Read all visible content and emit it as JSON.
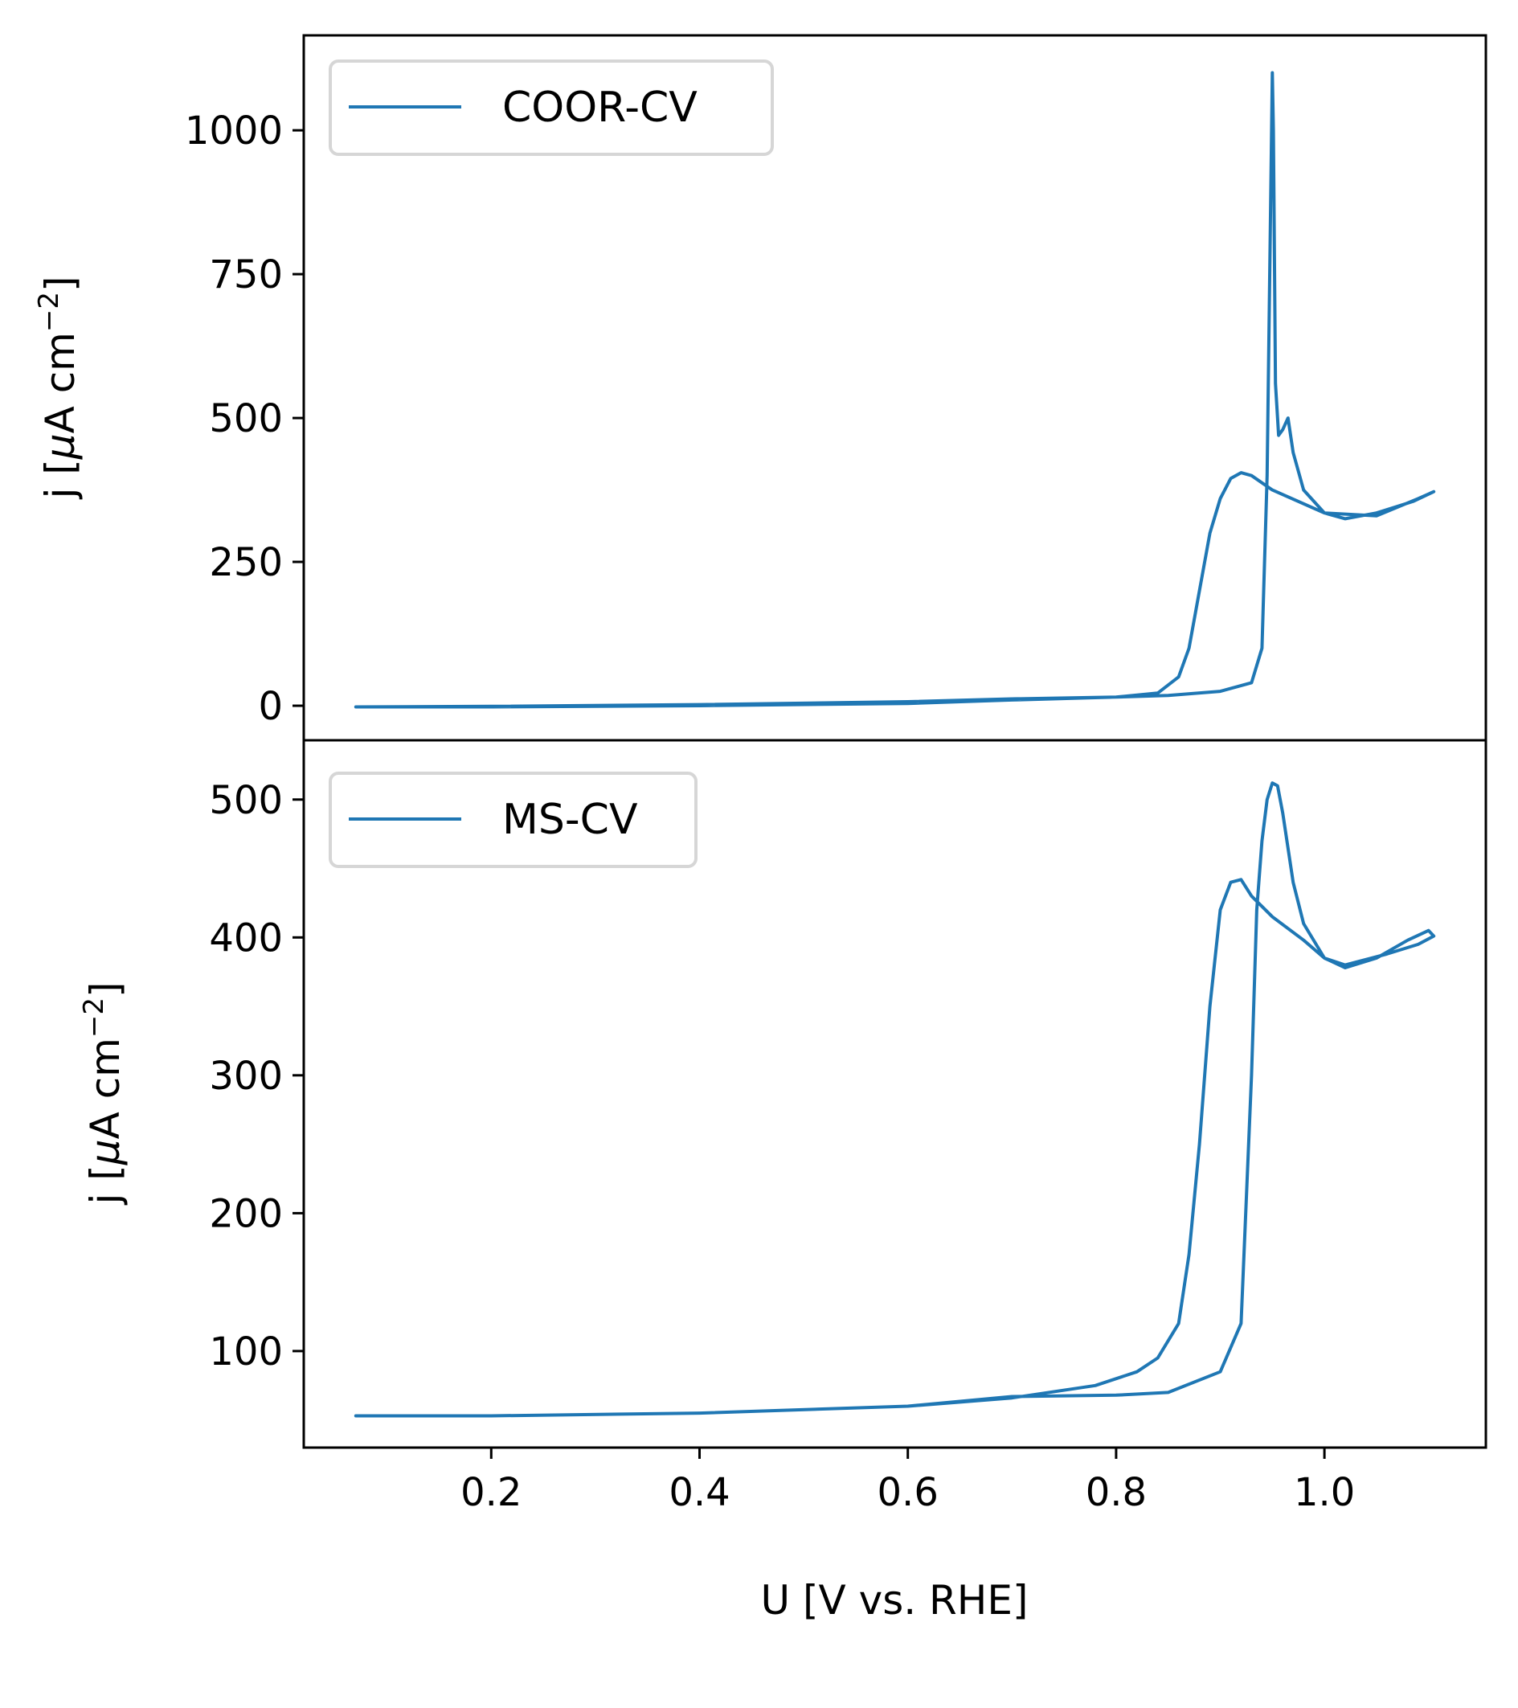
{
  "figure": {
    "line_color": "#1f77b4",
    "xlabel": "U [V vs. RHE]",
    "xlim": [
      0.02,
      1.155
    ],
    "xticks": [
      0.2,
      0.4,
      0.6,
      0.8,
      1.0
    ],
    "xtick_labels": [
      "0.2",
      "0.4",
      "0.6",
      "0.8",
      "1.0"
    ]
  },
  "chart_data": [
    {
      "type": "line",
      "panel": "top",
      "title": "",
      "ylabel": "j [μA cm⁻²]",
      "ylabel_parts": {
        "prefix": "j [",
        "mu": "μ",
        "unit": "A cm",
        "sup": "−2",
        "suffix": "]"
      },
      "ylim": [
        -60,
        1165
      ],
      "yticks": [
        0,
        250,
        500,
        750,
        1000
      ],
      "ytick_labels": [
        "0",
        "250",
        "500",
        "750",
        "1000"
      ],
      "grid": false,
      "legend": "top-left",
      "series": [
        {
          "name": "COOR-CV",
          "x": [
            0.07,
            0.2,
            0.4,
            0.6,
            0.7,
            0.8,
            0.84,
            0.86,
            0.87,
            0.88,
            0.89,
            0.9,
            0.91,
            0.92,
            0.93,
            0.95,
            1.0,
            1.02,
            1.05,
            1.085,
            1.105,
            1.09,
            1.05,
            1.0,
            0.98,
            0.97,
            0.965,
            0.96,
            0.956,
            0.953,
            0.951,
            0.95,
            0.945,
            0.94,
            0.93,
            0.9,
            0.85,
            0.8,
            0.7,
            0.6,
            0.4,
            0.2,
            0.07
          ],
          "y": [
            -2,
            -2,
            0,
            4,
            10,
            15,
            22,
            50,
            100,
            200,
            300,
            360,
            395,
            405,
            400,
            375,
            335,
            325,
            335,
            355,
            372,
            360,
            330,
            335,
            375,
            440,
            500,
            480,
            470,
            560,
            1000,
            1100,
            400,
            100,
            40,
            25,
            18,
            15,
            12,
            7,
            2,
            -1,
            -2
          ]
        }
      ]
    },
    {
      "type": "line",
      "panel": "bottom",
      "title": "",
      "ylabel": "j [μA cm⁻²]",
      "ylabel_parts": {
        "prefix": "j [",
        "mu": "μ",
        "unit": "A cm",
        "sup": "−2",
        "suffix": "]"
      },
      "ylim": [
        30,
        543
      ],
      "yticks": [
        100,
        200,
        300,
        400,
        500
      ],
      "ytick_labels": [
        "100",
        "200",
        "300",
        "400",
        "500"
      ],
      "grid": false,
      "legend": "top-left",
      "series": [
        {
          "name": "MS-CV",
          "x": [
            0.07,
            0.2,
            0.4,
            0.6,
            0.7,
            0.78,
            0.82,
            0.84,
            0.86,
            0.87,
            0.88,
            0.89,
            0.9,
            0.91,
            0.92,
            0.93,
            0.95,
            0.98,
            1.0,
            1.02,
            1.05,
            1.08,
            1.1,
            1.105,
            1.09,
            1.06,
            1.02,
            1.0,
            0.98,
            0.97,
            0.96,
            0.955,
            0.95,
            0.945,
            0.94,
            0.935,
            0.93,
            0.92,
            0.9,
            0.85,
            0.8,
            0.7,
            0.6,
            0.4,
            0.2,
            0.07
          ],
          "y": [
            53,
            53,
            55,
            60,
            66,
            75,
            85,
            95,
            120,
            170,
            250,
            350,
            420,
            440,
            442,
            430,
            415,
            398,
            385,
            378,
            385,
            398,
            405,
            401,
            395,
            388,
            380,
            385,
            410,
            440,
            490,
            510,
            512,
            500,
            470,
            420,
            300,
            120,
            85,
            70,
            68,
            67,
            60,
            55,
            53,
            53
          ]
        }
      ]
    }
  ]
}
